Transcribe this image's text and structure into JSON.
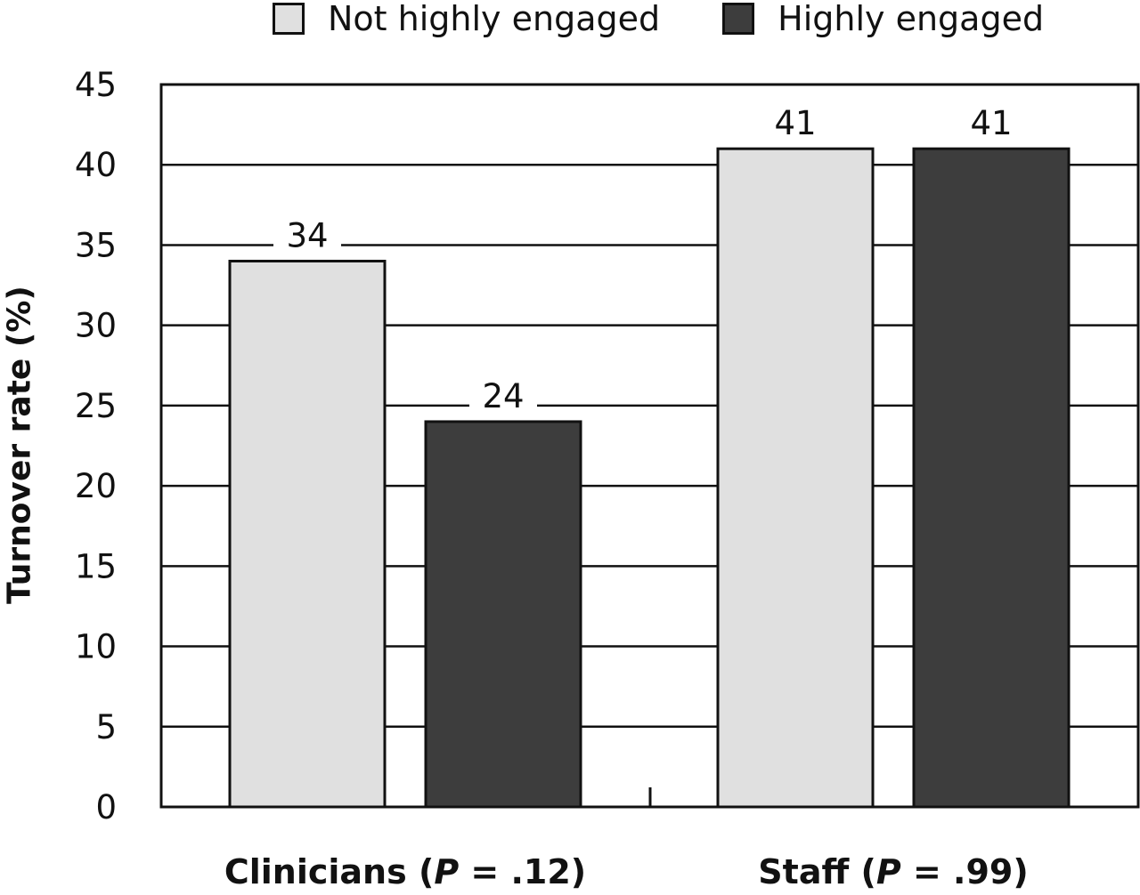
{
  "chart_data": {
    "type": "bar",
    "title": "",
    "xlabel": "",
    "ylabel": "Turnover rate (%)",
    "ylim": [
      0,
      45
    ],
    "yticks": [
      "0",
      "5",
      "10",
      "15",
      "20",
      "25",
      "30",
      "35",
      "40",
      "45"
    ],
    "grid": true,
    "legend_position": "top",
    "categories": [
      {
        "name": "Clinicians",
        "p_label": "P",
        "p_value": " = .12)"
      },
      {
        "name": "Staff",
        "p_label": "P",
        "p_value": " = .99)"
      }
    ],
    "series": [
      {
        "name": "Not highly engaged",
        "color": "#e0e0e0",
        "values": [
          34,
          41
        ]
      },
      {
        "name": "Highly engaged",
        "color": "#3d3d3d",
        "values": [
          24,
          41
        ]
      }
    ]
  }
}
